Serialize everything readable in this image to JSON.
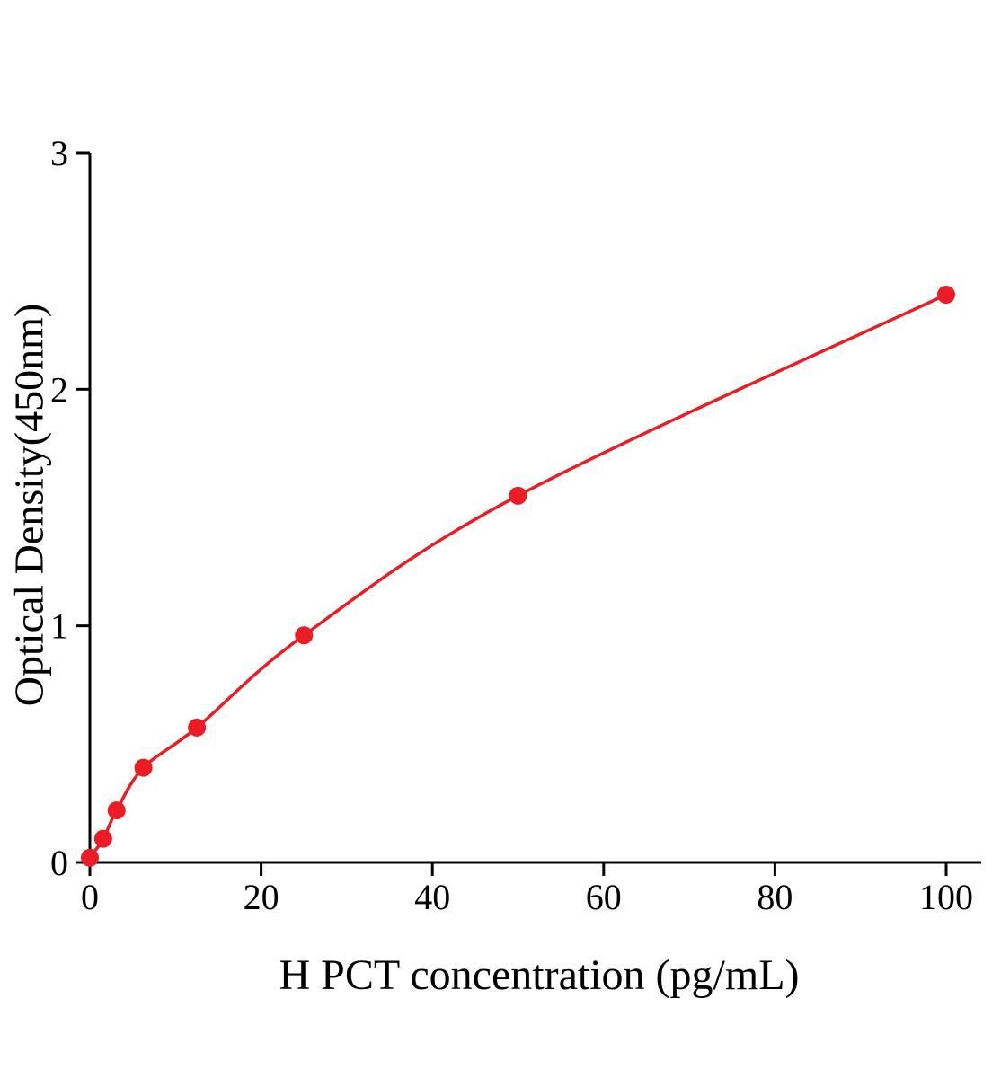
{
  "chart_data": {
    "type": "scatter",
    "title": "",
    "xlabel": "H PCT concentration (pg/mL)",
    "ylabel": "Optical Density(450nm)",
    "x": [
      0,
      1.56,
      3.12,
      6.25,
      12.5,
      25,
      50,
      100
    ],
    "y": [
      0.02,
      0.1,
      0.22,
      0.4,
      0.57,
      0.96,
      1.55,
      2.4
    ],
    "x_ticks": [
      0,
      20,
      40,
      60,
      80,
      100
    ],
    "y_ticks": [
      0,
      1,
      2,
      3
    ],
    "xlim": [
      0,
      104
    ],
    "ylim": [
      0,
      3
    ],
    "grid": false,
    "legend": null,
    "line_color": "#ec1c24",
    "marker_color": "#ec1c24",
    "axis_color": "#000000"
  }
}
